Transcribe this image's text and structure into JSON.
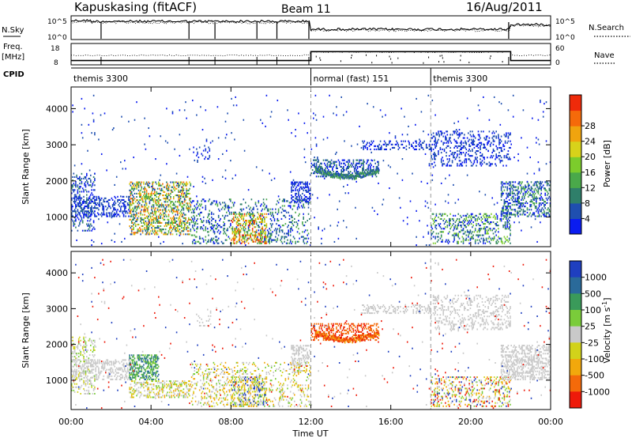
{
  "header": {
    "station": "Kapuskasing (fitACF)",
    "beam": "Beam 11",
    "date": "16/Aug/2011"
  },
  "params_panel": {
    "nsky_label": "N.Sky",
    "freq_label": "Freq.",
    "freq_unit": "[MHz]",
    "cpid_label": "CPID",
    "nsearch_label": "N.Search",
    "nave_label": "Nave",
    "left_ticks_top": [
      "10^5",
      "10^0"
    ],
    "left_ticks_freq": [
      "18",
      "8"
    ],
    "right_ticks_top": [
      "10^5",
      "10^0"
    ],
    "right_ticks_nave": [
      "60",
      "0"
    ],
    "freq_segments": [
      {
        "start": 0,
        "end": 12,
        "value": 10.0
      },
      {
        "start": 12,
        "end": 22,
        "value": 14.2
      },
      {
        "start": 22,
        "end": 24,
        "value": 10.0
      }
    ],
    "cpid_segments": [
      {
        "start": 0,
        "end": 12,
        "label": "themis 3300"
      },
      {
        "start": 12,
        "end": 18,
        "label": "normal (fast) 151"
      },
      {
        "start": 18,
        "end": 24,
        "label": "themis 3300"
      }
    ]
  },
  "chart_data": [
    {
      "type": "heatmap",
      "name": "power",
      "ylabel": "Slant Range [km]",
      "ylim": [
        180,
        4600
      ],
      "xlim": [
        0,
        24
      ],
      "yticks": [
        1000,
        2000,
        3000,
        4000
      ],
      "colorbar": {
        "label": "Power [dB]",
        "ticks": [
          "4",
          "8",
          "12",
          "16",
          "20",
          "24",
          "28"
        ],
        "colors": [
          "#0a1cf0",
          "#1f4fb0",
          "#2f7f6a",
          "#4aa94a",
          "#7ccc2c",
          "#d8d21a",
          "#f0a40e",
          "#f56a0a",
          "#ef2a0a"
        ]
      },
      "regions": [
        {
          "t0": 0.0,
          "t1": 1.2,
          "r0": 600,
          "r1": 2200,
          "density": 0.25,
          "levels": [
            0,
            1,
            2
          ]
        },
        {
          "t0": 0.0,
          "t1": 3.0,
          "r0": 1000,
          "r1": 1600,
          "density": 0.35,
          "levels": [
            0,
            1
          ]
        },
        {
          "t0": 2.9,
          "t1": 6.0,
          "r0": 500,
          "r1": 2000,
          "density": 0.4,
          "levels": [
            1,
            2,
            3,
            4,
            5,
            6,
            7
          ]
        },
        {
          "t0": 6.0,
          "t1": 12.0,
          "r0": 250,
          "r1": 1500,
          "density": 0.18,
          "levels": [
            0,
            1,
            2,
            3
          ]
        },
        {
          "t0": 8.0,
          "t1": 9.8,
          "r0": 250,
          "r1": 1100,
          "density": 0.35,
          "levels": [
            3,
            4,
            5,
            6,
            7,
            8
          ]
        },
        {
          "t0": 6.0,
          "t1": 7.0,
          "r0": 2500,
          "r1": 3000,
          "density": 0.12,
          "levels": [
            0,
            1
          ]
        },
        {
          "t0": 11.0,
          "t1": 12.0,
          "r0": 1400,
          "r1": 2000,
          "density": 0.4,
          "levels": [
            0,
            1
          ]
        },
        {
          "t0": 12.0,
          "t1": 15.4,
          "r0": 2100,
          "r1": 2600,
          "density": 0.35,
          "levels": [
            0,
            1,
            2
          ]
        },
        {
          "t0": 14.5,
          "t1": 18.0,
          "r0": 2850,
          "r1": 3100,
          "density": 0.3,
          "levels": [
            0,
            1
          ]
        },
        {
          "t0": 18.0,
          "t1": 22.0,
          "r0": 2400,
          "r1": 3400,
          "density": 0.22,
          "levels": [
            0,
            1
          ]
        },
        {
          "t0": 18.0,
          "t1": 22.0,
          "r0": 250,
          "r1": 1100,
          "density": 0.25,
          "levels": [
            0,
            1,
            2,
            3,
            4
          ]
        },
        {
          "t0": 21.5,
          "t1": 24.0,
          "r0": 1000,
          "r1": 2000,
          "density": 0.4,
          "levels": [
            0,
            1,
            2,
            3
          ]
        },
        {
          "t0": 0.0,
          "t1": 24.0,
          "r0": 200,
          "r1": 4400,
          "density": 0.01,
          "levels": [
            0,
            1
          ]
        }
      ]
    },
    {
      "type": "heatmap",
      "name": "velocity",
      "ylabel": "Slant Range [km]",
      "xlabel": "Time UT",
      "ylim": [
        180,
        4600
      ],
      "xlim": [
        0,
        24
      ],
      "yticks": [
        1000,
        2000,
        3000,
        4000
      ],
      "xticks": [
        "00:00",
        "04:00",
        "08:00",
        "12:00",
        "16:00",
        "20:00",
        "00:00"
      ],
      "colorbar": {
        "label": "Velocity [m s^-1]",
        "ticks": [
          "1000",
          "500",
          "100",
          "25",
          "-25",
          "-100",
          "-500",
          "-1000"
        ],
        "colors": [
          "#1f3fc0",
          "#2a6a9a",
          "#3a9a5a",
          "#7acc3a",
          "#c9c9c9",
          "#d2d21a",
          "#f2a80c",
          "#f46a0a",
          "#ee1a0a"
        ]
      },
      "regions": [
        {
          "t0": 0.0,
          "t1": 1.2,
          "r0": 600,
          "r1": 2200,
          "density": 0.25,
          "levels": [
            4,
            4,
            5,
            3
          ]
        },
        {
          "t0": 0.0,
          "t1": 3.0,
          "r0": 1000,
          "r1": 1600,
          "density": 0.35,
          "levels": [
            4,
            4,
            4
          ]
        },
        {
          "t0": 2.9,
          "t1": 4.4,
          "r0": 1000,
          "r1": 1700,
          "density": 0.5,
          "levels": [
            2,
            3,
            1
          ]
        },
        {
          "t0": 2.9,
          "t1": 6.0,
          "r0": 500,
          "r1": 1000,
          "density": 0.4,
          "levels": [
            4,
            4,
            5,
            6,
            3
          ]
        },
        {
          "t0": 6.0,
          "t1": 12.0,
          "r0": 250,
          "r1": 1500,
          "density": 0.18,
          "levels": [
            4,
            4,
            5,
            3,
            6
          ]
        },
        {
          "t0": 8.0,
          "t1": 9.8,
          "r0": 250,
          "r1": 1100,
          "density": 0.35,
          "levels": [
            4,
            5,
            6,
            3,
            0
          ]
        },
        {
          "t0": 6.0,
          "t1": 7.0,
          "r0": 2500,
          "r1": 3000,
          "density": 0.12,
          "levels": [
            4,
            4
          ]
        },
        {
          "t0": 11.0,
          "t1": 12.0,
          "r0": 1400,
          "r1": 2000,
          "density": 0.4,
          "levels": [
            4,
            4
          ]
        },
        {
          "t0": 12.0,
          "t1": 15.4,
          "r0": 2100,
          "r1": 2600,
          "density": 0.35,
          "levels": [
            7,
            8,
            7
          ]
        },
        {
          "t0": 14.5,
          "t1": 18.0,
          "r0": 2850,
          "r1": 3100,
          "density": 0.3,
          "levels": [
            4,
            4
          ]
        },
        {
          "t0": 18.0,
          "t1": 22.0,
          "r0": 2400,
          "r1": 3400,
          "density": 0.22,
          "levels": [
            4,
            4
          ]
        },
        {
          "t0": 18.0,
          "t1": 22.0,
          "r0": 250,
          "r1": 1100,
          "density": 0.25,
          "levels": [
            4,
            5,
            6,
            3,
            0,
            8
          ]
        },
        {
          "t0": 21.5,
          "t1": 24.0,
          "r0": 1000,
          "r1": 2000,
          "density": 0.4,
          "levels": [
            4,
            4,
            4
          ]
        },
        {
          "t0": 0.0,
          "t1": 24.0,
          "r0": 200,
          "r1": 4400,
          "density": 0.01,
          "levels": [
            0,
            8,
            4
          ]
        }
      ]
    }
  ]
}
